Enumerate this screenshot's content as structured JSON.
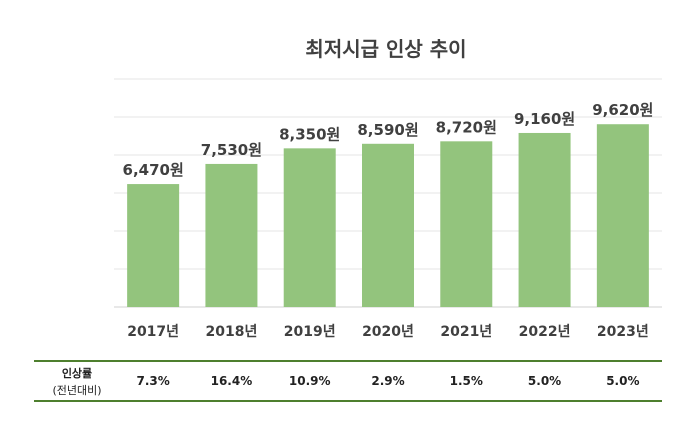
{
  "chart_data": {
    "type": "bar",
    "title": "최저시급 인상 추이",
    "categories": [
      "2017년",
      "2018년",
      "2019년",
      "2020년",
      "2021년",
      "2022년",
      "2023년"
    ],
    "values": [
      6470,
      7530,
      8350,
      8590,
      8720,
      9160,
      9620
    ],
    "data_labels": [
      "6,470원",
      "7,530원",
      "8,350원",
      "8,590원",
      "8,720원",
      "9,160원",
      "9,620원"
    ],
    "ylim": [
      0,
      12000
    ],
    "grid": true,
    "bar_color": "#93c47d",
    "legend": "none"
  },
  "rate_table": {
    "header_line1": "인상률",
    "header_line2": "(전년대비)",
    "values": [
      "7.3%",
      "16.4%",
      "10.9%",
      "2.9%",
      "1.5%",
      "5.0%",
      "5.0%"
    ],
    "border_color": "#4e7f2e"
  }
}
